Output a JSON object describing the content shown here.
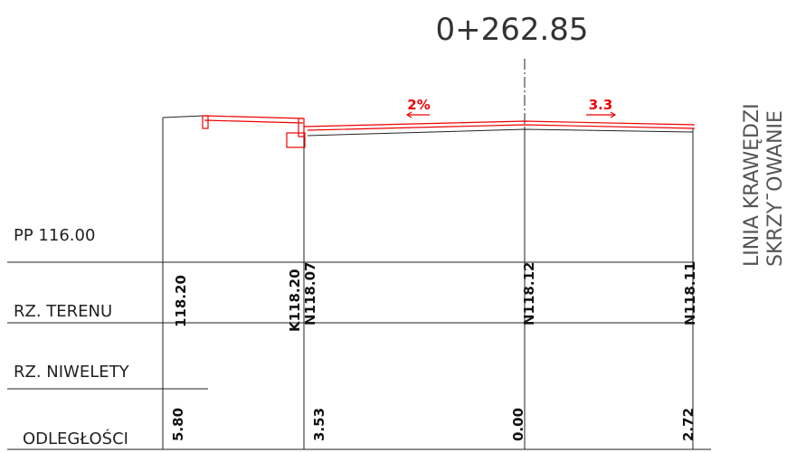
{
  "title": "0+262.85",
  "side_label": [
    "LINIA KRAWĘDZI",
    "SKRZY¯OWANIE"
  ],
  "slopes": [
    "2%",
    "3.3"
  ],
  "rows": [
    "PP 116.00",
    "RZ. TERENU",
    "RZ. NIWELETY",
    "ODLEGŁOŚCI"
  ],
  "terrain": [
    "118.20",
    "K118.20",
    "N118.07",
    "N118.12",
    "N118.11"
  ],
  "distances": [
    "5.80",
    "3.53",
    "0.00",
    "2.72"
  ]
}
